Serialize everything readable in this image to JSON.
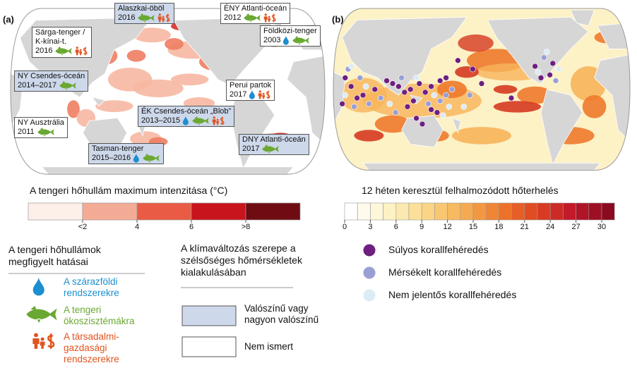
{
  "panel_labels": [
    "(a)",
    "(b)"
  ],
  "events": [
    {
      "name": [
        "Alaszkai-öböl"
      ],
      "years": "2016"
    },
    {
      "name": [
        "ÉNY Atlanti-óceán"
      ],
      "years": "2012"
    },
    {
      "name": [
        "Sárga-tenger /",
        "K-kínai-t."
      ],
      "years": "2016"
    },
    {
      "name": [
        "Földközi-tenger"
      ],
      "years": "2003"
    },
    {
      "name": [
        "NY Csendes-óceán"
      ],
      "years": "2014–2017"
    },
    {
      "name": [
        "Perui partok"
      ],
      "years": "2017"
    },
    {
      "name": [
        "ÉK Csendes-óceán „Blob”"
      ],
      "years": "2013–2015"
    },
    {
      "name": [
        "NY Ausztrália"
      ],
      "years": "2011"
    },
    {
      "name": [
        "DNY Atlanti-óceán"
      ],
      "years": "2017"
    },
    {
      "name": [
        "Tasman-tenger"
      ],
      "years": "2015–2016"
    }
  ],
  "intensity_legend": {
    "title": "A tengeri hőhullám maximum intenzitása (°C)",
    "ticks": [
      "<2",
      "4",
      "6",
      ">8"
    ]
  },
  "heat_legend": {
    "title": "12 héten keresztül felhalmozódott hőterhelés",
    "ticks": [
      0,
      3,
      6,
      9,
      12,
      15,
      18,
      21,
      24,
      27,
      30
    ]
  },
  "impacts": {
    "title": [
      "A tengeri hőhullámok",
      "megfigyelt hatásai"
    ],
    "items": [
      [
        "A szárazföldi",
        "rendszerekre"
      ],
      [
        "A tengeri",
        "ökoszisztémákra"
      ],
      [
        "A társadalmi-",
        "gazdasági",
        "rendszerekre"
      ]
    ]
  },
  "attribution": {
    "title": [
      "A klímaváltozás szerepe a",
      "szélsőséges hőmérsékletek",
      "kialakulásában"
    ],
    "items": [
      [
        "Valószínű vagy",
        "nagyon valószínű"
      ],
      [
        "Nem ismert"
      ]
    ]
  },
  "bleaching": [
    "Súlyos korallfehéredés",
    "Mérsékelt korallfehéredés",
    "Nem jelentős korallfehéredés"
  ]
}
